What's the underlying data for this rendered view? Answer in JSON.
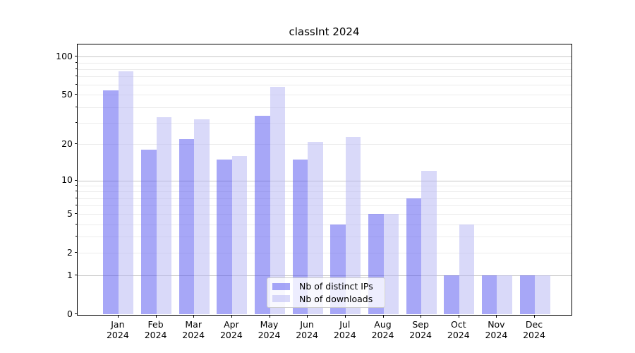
{
  "title": "classInt 2024",
  "chart_data": {
    "type": "bar",
    "title": "classInt 2024",
    "categories": [
      "Jan 2024",
      "Feb 2024",
      "Mar 2024",
      "Apr 2024",
      "May 2024",
      "Jun 2024",
      "Jul 2024",
      "Aug 2024",
      "Sep 2024",
      "Oct 2024",
      "Nov 2024",
      "Dec 2024"
    ],
    "series": [
      {
        "name": "Nb of distinct IPs",
        "color": "#a7a7f7",
        "color_rgba": "rgba(79,79,239,0.5)",
        "values": [
          54,
          18,
          22,
          15,
          34,
          15,
          4,
          5,
          7,
          1,
          1,
          1
        ]
      },
      {
        "name": "Nb of downloads",
        "color": "#d9d9f9",
        "color_rgba": "rgba(179,179,243,0.5)",
        "values": [
          77,
          33,
          32,
          16,
          58,
          21,
          23,
          5,
          12,
          4,
          1,
          1
        ]
      }
    ],
    "ylabel": "",
    "xlabel": "",
    "yscale": "log(x+1)",
    "ylim": [
      0,
      127
    ],
    "yticks": [
      100,
      50,
      20,
      10,
      5,
      2,
      1,
      0
    ],
    "ytick_minor": [
      2,
      3,
      4,
      5,
      6,
      7,
      8,
      9,
      20,
      30,
      40,
      50,
      60,
      70,
      80,
      90
    ],
    "grid": true,
    "legend_position": "lower center",
    "gridline_minor_color": "#ececec",
    "gridline_major_color": "#c6c6c6"
  }
}
